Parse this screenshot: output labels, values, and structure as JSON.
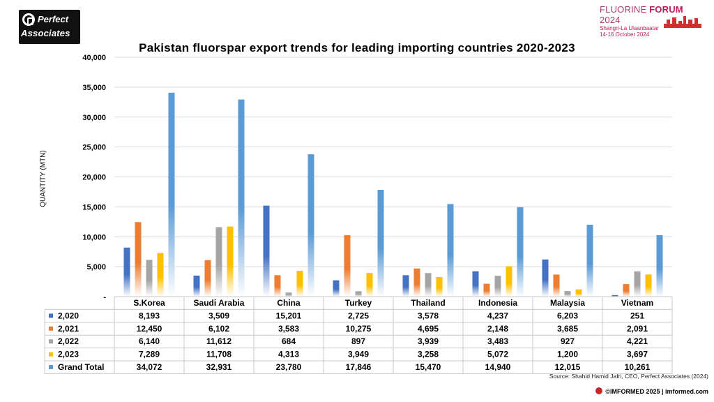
{
  "branding": {
    "left_logo_line1": "Perfect",
    "left_logo_line2": "Associates",
    "event_name_part1": "FLUORINE ",
    "event_name_part2": "FORUM",
    "event_year": " 2024",
    "event_venue": "Shangri-La Ulaanbaatar",
    "event_dates": "14-16 October 2024"
  },
  "source_note": "Source: Shahid Hamid Jafri, CEO, Perfect Associates (2024)",
  "footer_text": "©IMFORMED 2025 | imformed.com",
  "chart_data": {
    "type": "bar",
    "title": "Pakistan fluorspar export trends for leading importing countries 2020-2023",
    "ylabel": "QUANTITY (MTN)",
    "xlabel": "",
    "ylim": [
      0,
      40000
    ],
    "yticks": [
      "-",
      "5,000",
      "10,000",
      "15,000",
      "20,000",
      "25,000",
      "30,000",
      "35,000",
      "40,000"
    ],
    "grid": true,
    "legend": "data-table",
    "categories": [
      "S.Korea",
      "Saudi Arabia",
      "China",
      "Turkey",
      "Thailand",
      "Indonesia",
      "Malaysia",
      "Vietnam"
    ],
    "series": [
      {
        "name": "2,020",
        "color": "#4472c4",
        "values": [
          8193,
          3509,
          15201,
          2725,
          3578,
          4237,
          6203,
          251
        ],
        "labels": [
          "8,193",
          "3,509",
          "15,201",
          "2,725",
          "3,578",
          "4,237",
          "6,203",
          "251"
        ]
      },
      {
        "name": "2,021",
        "color": "#ed7d31",
        "values": [
          12450,
          6102,
          3583,
          10275,
          4695,
          2148,
          3685,
          2091
        ],
        "labels": [
          "12,450",
          "6,102",
          "3,583",
          "10,275",
          "4,695",
          "2,148",
          "3,685",
          "2,091"
        ]
      },
      {
        "name": "2,022",
        "color": "#a5a5a5",
        "values": [
          6140,
          11612,
          684,
          897,
          3939,
          3483,
          927,
          4221
        ],
        "labels": [
          "6,140",
          "11,612",
          "684",
          "897",
          "3,939",
          "3,483",
          "927",
          "4,221"
        ]
      },
      {
        "name": "2,023",
        "color": "#ffc000",
        "values": [
          7289,
          11708,
          4313,
          3949,
          3258,
          5072,
          1200,
          3697
        ],
        "labels": [
          "7,289",
          "11,708",
          "4,313",
          "3,949",
          "3,258",
          "5,072",
          "1,200",
          "3,697"
        ]
      },
      {
        "name": "Grand Total",
        "color": "#5b9bd5",
        "values": [
          34072,
          32931,
          23780,
          17846,
          15470,
          14940,
          12015,
          10261
        ],
        "labels": [
          "34,072",
          "32,931",
          "23,780",
          "17,846",
          "15,470",
          "14,940",
          "12,015",
          "10,261"
        ]
      }
    ]
  }
}
